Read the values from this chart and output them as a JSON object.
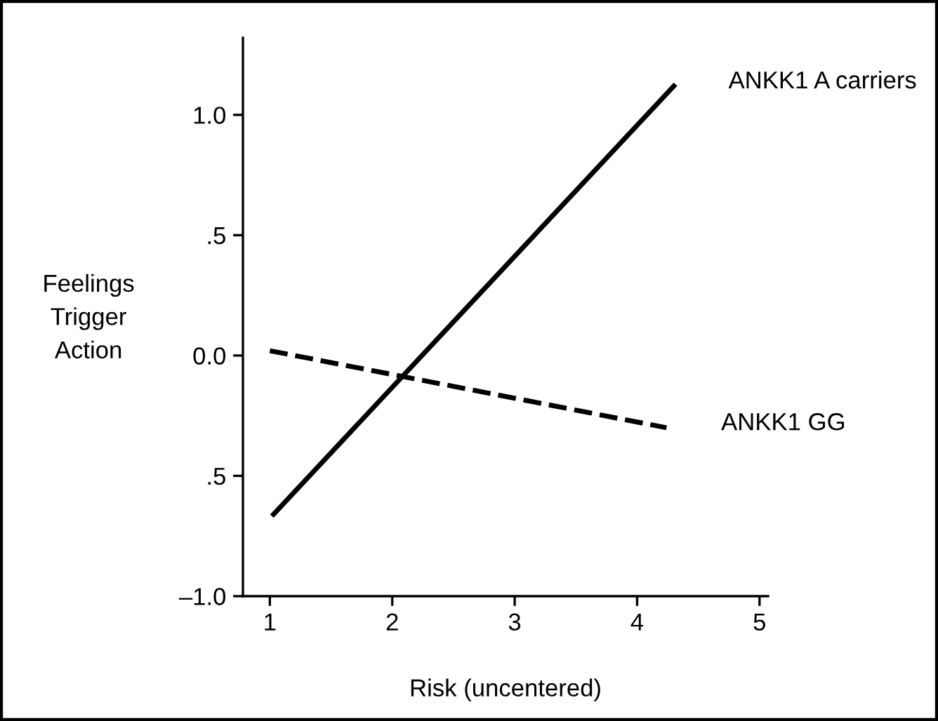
{
  "chart_data": {
    "type": "line",
    "xlabel": "Risk (uncentered)",
    "ylabel": "Feelings\nTrigger\nAction",
    "series": [
      {
        "name": "ANKK1 A carriers",
        "color": "#000000",
        "x": [
          1.03,
          4.3
        ],
        "values": [
          -0.66,
          1.12
        ],
        "line_style": "solid"
      },
      {
        "name": "ANKK1 GG",
        "color": "#000000",
        "x": [
          1.0,
          4.24
        ],
        "values": [
          0.02,
          -0.3
        ],
        "line_style": "dashed"
      }
    ],
    "xlim": [
      0.78,
      5.07
    ],
    "ylim": [
      -1.0,
      1.32
    ],
    "xticks": [
      1,
      2,
      3,
      4,
      5
    ],
    "yticks": [
      {
        "value": -1.0,
        "label": "–1.0"
      },
      {
        "value": -0.5,
        "label": ".5"
      },
      {
        "value": 0.0,
        "label": "0.0"
      },
      {
        "value": 0.5,
        "label": ".5"
      },
      {
        "value": 1.0,
        "label": "1.0"
      }
    ],
    "grid": false,
    "legend": false,
    "marker": "none"
  }
}
